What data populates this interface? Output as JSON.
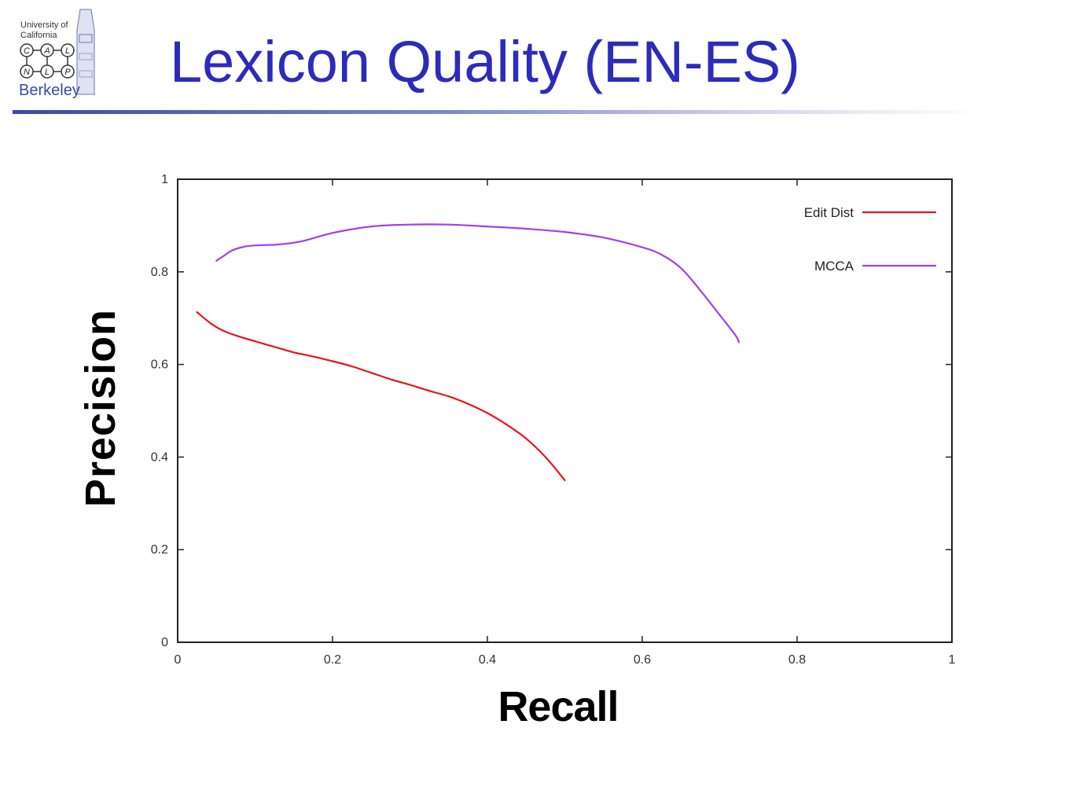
{
  "slide": {
    "title": "Lexicon Quality (EN-ES)"
  },
  "logo": {
    "university_line1": "University of",
    "university_line2": "California",
    "letters": [
      "C",
      "A",
      "L",
      "N",
      "L",
      "P"
    ],
    "berkeley": "Berkeley"
  },
  "colors": {
    "title": "#2b2bbd",
    "rule": "#3a4aa8",
    "edit_dist": "#e8141c",
    "mcca": "#a040f0"
  },
  "chart_data": {
    "type": "line",
    "title": "",
    "xlabel": "Recall",
    "ylabel": "Precision",
    "xlim": [
      0,
      1
    ],
    "ylim": [
      0,
      1
    ],
    "xticks": [
      "0",
      "0.2",
      "0.4",
      "0.6",
      "0.8",
      "1"
    ],
    "yticks": [
      "0",
      "0.2",
      "0.4",
      "0.6",
      "0.8",
      "1"
    ],
    "grid": false,
    "legend_position": "top-right",
    "series": [
      {
        "name": "Edit Dist",
        "color": "#e8141c",
        "points": [
          [
            0.025,
            0.713
          ],
          [
            0.035,
            0.699
          ],
          [
            0.045,
            0.686
          ],
          [
            0.06,
            0.672
          ],
          [
            0.08,
            0.66
          ],
          [
            0.1,
            0.65
          ],
          [
            0.125,
            0.638
          ],
          [
            0.15,
            0.626
          ],
          [
            0.175,
            0.617
          ],
          [
            0.2,
            0.607
          ],
          [
            0.225,
            0.596
          ],
          [
            0.25,
            0.582
          ],
          [
            0.275,
            0.568
          ],
          [
            0.3,
            0.556
          ],
          [
            0.325,
            0.543
          ],
          [
            0.35,
            0.531
          ],
          [
            0.375,
            0.515
          ],
          [
            0.4,
            0.495
          ],
          [
            0.425,
            0.47
          ],
          [
            0.45,
            0.44
          ],
          [
            0.475,
            0.4
          ],
          [
            0.5,
            0.35
          ]
        ]
      },
      {
        "name": "MCCA",
        "color": "#a040f0",
        "points": [
          [
            0.05,
            0.824
          ],
          [
            0.06,
            0.835
          ],
          [
            0.07,
            0.846
          ],
          [
            0.085,
            0.854
          ],
          [
            0.1,
            0.857
          ],
          [
            0.13,
            0.859
          ],
          [
            0.16,
            0.866
          ],
          [
            0.2,
            0.884
          ],
          [
            0.25,
            0.898
          ],
          [
            0.3,
            0.902
          ],
          [
            0.35,
            0.902
          ],
          [
            0.4,
            0.898
          ],
          [
            0.45,
            0.893
          ],
          [
            0.5,
            0.886
          ],
          [
            0.55,
            0.874
          ],
          [
            0.6,
            0.853
          ],
          [
            0.625,
            0.837
          ],
          [
            0.65,
            0.808
          ],
          [
            0.675,
            0.76
          ],
          [
            0.7,
            0.707
          ],
          [
            0.72,
            0.664
          ],
          [
            0.725,
            0.648
          ]
        ]
      }
    ]
  }
}
